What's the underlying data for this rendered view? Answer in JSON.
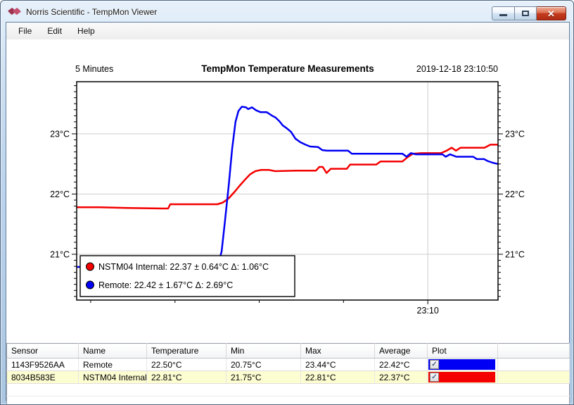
{
  "window": {
    "title": "Norris Scientific - TempMon Viewer",
    "controls": [
      {
        "name": "minimize"
      },
      {
        "name": "maximize"
      },
      {
        "name": "close"
      }
    ]
  },
  "menu": {
    "items": [
      {
        "label": "File"
      },
      {
        "label": "Edit"
      },
      {
        "label": "Help"
      }
    ]
  },
  "chart_data": {
    "type": "line",
    "title": "TempMon Temperature Measurements",
    "window_label": "5 Minutes",
    "timestamp": "2019-12-18 23:10:50",
    "ylabel": "",
    "xlabel": "",
    "y_unit": "°C",
    "ylim": [
      20.25,
      23.87
    ],
    "grid": true,
    "legend_position": "bottom-left",
    "y_major_ticks": [
      {
        "value": 21,
        "label": "21°C"
      },
      {
        "value": 22,
        "label": "22°C"
      },
      {
        "value": 23,
        "label": "23°C"
      }
    ],
    "y_minor_step": 0.1,
    "x_axis": {
      "major_tick": {
        "t": 0.8333,
        "label": "23:10"
      },
      "minor_ticks_t": [
        0.0333,
        0.2333,
        0.4333,
        0.6333
      ]
    },
    "series": [
      {
        "name": "NSTM04 Internal",
        "color": "#f40000",
        "legend_text": "NSTM04 Internal: 22.37 ± 0.64°C  Δ: 1.06°C",
        "points": [
          [
            0,
            21.78
          ],
          [
            0.053,
            21.78
          ],
          [
            0.12,
            21.77
          ],
          [
            0.204,
            21.76
          ],
          [
            0.217,
            21.76
          ],
          [
            0.222,
            21.83
          ],
          [
            0.334,
            21.83
          ],
          [
            0.347,
            21.86
          ],
          [
            0.361,
            21.93
          ],
          [
            0.374,
            22.03
          ],
          [
            0.387,
            22.14
          ],
          [
            0.401,
            22.25
          ],
          [
            0.412,
            22.33
          ],
          [
            0.424,
            22.38
          ],
          [
            0.437,
            22.4
          ],
          [
            0.457,
            22.4
          ],
          [
            0.471,
            22.38
          ],
          [
            0.521,
            22.39
          ],
          [
            0.568,
            22.39
          ],
          [
            0.576,
            22.45
          ],
          [
            0.584,
            22.45
          ],
          [
            0.593,
            22.35
          ],
          [
            0.603,
            22.42
          ],
          [
            0.641,
            22.42
          ],
          [
            0.649,
            22.49
          ],
          [
            0.711,
            22.49
          ],
          [
            0.721,
            22.54
          ],
          [
            0.773,
            22.54
          ],
          [
            0.785,
            22.61
          ],
          [
            0.798,
            22.67
          ],
          [
            0.818,
            22.68
          ],
          [
            0.865,
            22.68
          ],
          [
            0.878,
            22.72
          ],
          [
            0.89,
            22.77
          ],
          [
            0.9,
            22.72
          ],
          [
            0.911,
            22.77
          ],
          [
            0.968,
            22.77
          ],
          [
            0.982,
            22.82
          ],
          [
            1,
            22.82
          ]
        ]
      },
      {
        "name": "Remote",
        "color": "#0000f4",
        "legend_text": "Remote: 22.42 ± 1.67°C  Δ: 2.69°C",
        "points": [
          [
            0,
            20.79
          ],
          [
            0.154,
            20.78
          ],
          [
            0.321,
            20.78
          ],
          [
            0.336,
            20.83
          ],
          [
            0.344,
            21.05
          ],
          [
            0.352,
            21.55
          ],
          [
            0.361,
            22.15
          ],
          [
            0.369,
            22.75
          ],
          [
            0.377,
            23.2
          ],
          [
            0.384,
            23.38
          ],
          [
            0.392,
            23.45
          ],
          [
            0.402,
            23.44
          ],
          [
            0.407,
            23.41
          ],
          [
            0.416,
            23.44
          ],
          [
            0.426,
            23.39
          ],
          [
            0.436,
            23.36
          ],
          [
            0.451,
            23.36
          ],
          [
            0.464,
            23.3
          ],
          [
            0.472,
            23.27
          ],
          [
            0.481,
            23.21
          ],
          [
            0.489,
            23.14
          ],
          [
            0.499,
            23.09
          ],
          [
            0.509,
            23.03
          ],
          [
            0.519,
            22.92
          ],
          [
            0.531,
            22.86
          ],
          [
            0.543,
            22.82
          ],
          [
            0.554,
            22.79
          ],
          [
            0.573,
            22.78
          ],
          [
            0.583,
            22.73
          ],
          [
            0.594,
            22.72
          ],
          [
            0.644,
            22.72
          ],
          [
            0.653,
            22.67
          ],
          [
            0.73,
            22.67
          ],
          [
            0.773,
            22.67
          ],
          [
            0.783,
            22.62
          ],
          [
            0.793,
            22.68
          ],
          [
            0.805,
            22.66
          ],
          [
            0.868,
            22.66
          ],
          [
            0.876,
            22.62
          ],
          [
            0.886,
            22.66
          ],
          [
            0.901,
            22.62
          ],
          [
            0.941,
            22.62
          ],
          [
            0.95,
            22.58
          ],
          [
            0.967,
            22.58
          ],
          [
            0.975,
            22.55
          ],
          [
            0.987,
            22.52
          ],
          [
            1,
            22.5
          ]
        ]
      }
    ]
  },
  "table": {
    "columns": [
      "Sensor",
      "Name",
      "Temperature",
      "Min",
      "Max",
      "Average",
      "Plot"
    ],
    "rows": [
      {
        "sensor": "1143F9526AA",
        "name": "Remote",
        "temperature": "22.50°C",
        "min": "20.75°C",
        "max": "23.44°C",
        "average": "22.42°C",
        "plot_checked": true,
        "plot_color": "#0000f4",
        "highlighted": false
      },
      {
        "sensor": "8034B583E",
        "name": "NSTM04 Internal",
        "temperature": "22.81°C",
        "min": "21.75°C",
        "max": "22.81°C",
        "average": "22.37°C",
        "plot_checked": true,
        "plot_color": "#f40000",
        "highlighted": true
      }
    ]
  }
}
